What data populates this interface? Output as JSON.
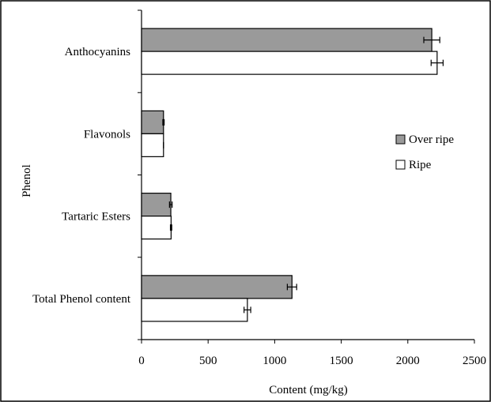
{
  "chart_data": {
    "type": "bar",
    "orientation": "horizontal",
    "title": "",
    "xlabel": "Content (mg/kg)",
    "ylabel": "Phenol",
    "xlim": [
      0,
      2500
    ],
    "x_ticks": [
      0,
      500,
      1000,
      1500,
      2000,
      2500
    ],
    "x_tick_labels": [
      "0",
      "500",
      "1000",
      "1500",
      "2000",
      "2500"
    ],
    "grid": false,
    "legend": {
      "placement": "right"
    },
    "categories": [
      "Anthocyanins",
      "Flavonols",
      "Tartaric Esters",
      "Total Phenol content"
    ],
    "series": [
      {
        "name": "Over ripe",
        "color": "#9a9a9a",
        "values": [
          2180,
          165,
          220,
          1130
        ],
        "errors": [
          60,
          5,
          10,
          35
        ]
      },
      {
        "name": "Ripe",
        "color": "#ffffff",
        "values": [
          2220,
          165,
          222,
          795
        ],
        "errors": [
          45,
          0,
          5,
          25
        ]
      }
    ]
  }
}
